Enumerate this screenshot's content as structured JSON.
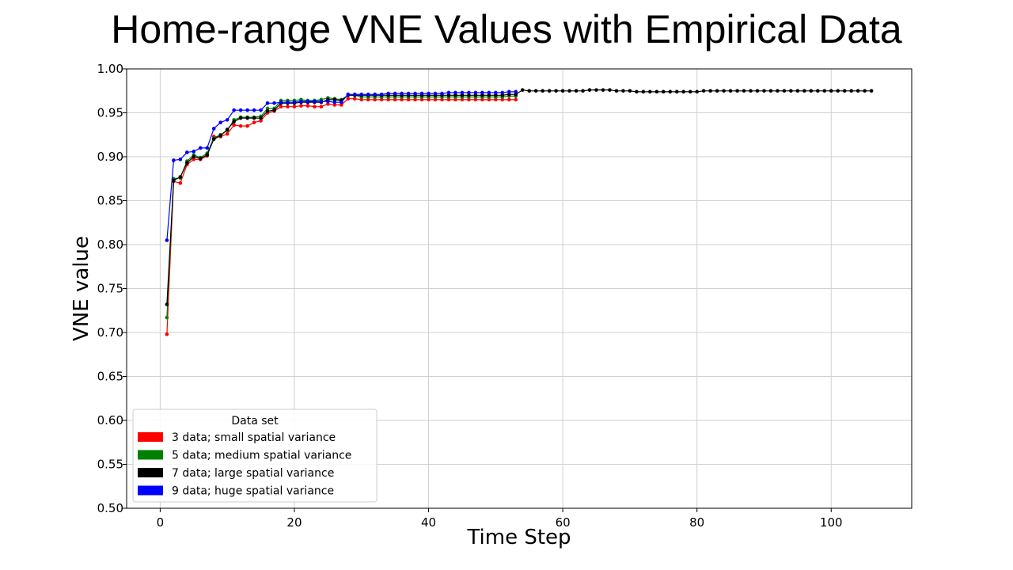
{
  "slide": {
    "title": "Home-range VNE Values with Empirical Data"
  },
  "chart_data": {
    "type": "line",
    "title": "",
    "xlabel": "Time Step",
    "ylabel": "VNE value",
    "xlim": [
      -5,
      112
    ],
    "ylim": [
      0.5,
      1.0
    ],
    "xticks": [
      0,
      20,
      40,
      60,
      80,
      100
    ],
    "yticks": [
      0.5,
      0.55,
      0.6,
      0.65,
      0.7,
      0.75,
      0.8,
      0.85,
      0.9,
      0.95,
      1.0
    ],
    "grid": true,
    "legend": {
      "title": "Data set",
      "placement": "lower-left"
    },
    "series": [
      {
        "name": "3 data; small spatial variance",
        "color": "#ff0000",
        "x": [
          1,
          2,
          3,
          4,
          5,
          6,
          7,
          8,
          9,
          10,
          11,
          12,
          13,
          14,
          15,
          16,
          17,
          18,
          19,
          20,
          21,
          22,
          23,
          24,
          25,
          26,
          27,
          28,
          29,
          30,
          31,
          32,
          33,
          34,
          35,
          36,
          37,
          38,
          39,
          40,
          41,
          42,
          43,
          44,
          45,
          46,
          47,
          48,
          49,
          50,
          51,
          52,
          53
        ],
        "y": [
          0.698,
          0.872,
          0.87,
          0.891,
          0.897,
          0.897,
          0.901,
          0.923,
          0.923,
          0.926,
          0.936,
          0.935,
          0.935,
          0.939,
          0.941,
          0.95,
          0.952,
          0.957,
          0.957,
          0.957,
          0.958,
          0.958,
          0.957,
          0.957,
          0.96,
          0.959,
          0.959,
          0.966,
          0.966,
          0.965,
          0.965,
          0.965,
          0.965,
          0.965,
          0.965,
          0.965,
          0.965,
          0.965,
          0.965,
          0.965,
          0.965,
          0.965,
          0.965,
          0.965,
          0.965,
          0.965,
          0.965,
          0.965,
          0.965,
          0.965,
          0.965,
          0.965,
          0.965
        ]
      },
      {
        "name": "5 data; medium spatial variance",
        "color": "#008000",
        "x": [
          1,
          2,
          3,
          4,
          5,
          6,
          7,
          8,
          9,
          10,
          11,
          12,
          13,
          14,
          15,
          16,
          17,
          18,
          19,
          20,
          21,
          22,
          23,
          24,
          25,
          26,
          27,
          28,
          29,
          30,
          31,
          32,
          33,
          34,
          35,
          36,
          37,
          38,
          39,
          40,
          41,
          42,
          43,
          44,
          45,
          46,
          47,
          48,
          49,
          50,
          51,
          52,
          53
        ],
        "y": [
          0.717,
          0.875,
          0.876,
          0.895,
          0.902,
          0.899,
          0.904,
          0.921,
          0.925,
          0.93,
          0.942,
          0.945,
          0.945,
          0.945,
          0.946,
          0.955,
          0.955,
          0.964,
          0.964,
          0.964,
          0.965,
          0.964,
          0.964,
          0.965,
          0.967,
          0.966,
          0.965,
          0.97,
          0.97,
          0.968,
          0.968,
          0.968,
          0.968,
          0.968,
          0.968,
          0.968,
          0.968,
          0.968,
          0.968,
          0.968,
          0.968,
          0.968,
          0.968,
          0.968,
          0.968,
          0.968,
          0.968,
          0.968,
          0.968,
          0.968,
          0.968,
          0.969,
          0.969
        ]
      },
      {
        "name": "7 data; large spatial variance",
        "color": "#000000",
        "x": [
          1,
          2,
          3,
          4,
          5,
          6,
          7,
          8,
          9,
          10,
          11,
          12,
          13,
          14,
          15,
          16,
          17,
          18,
          19,
          20,
          21,
          22,
          23,
          24,
          25,
          26,
          27,
          28,
          29,
          30,
          31,
          32,
          33,
          34,
          35,
          36,
          37,
          38,
          39,
          40,
          41,
          42,
          43,
          44,
          45,
          46,
          47,
          48,
          49,
          50,
          51,
          52,
          53,
          54,
          55,
          56,
          57,
          58,
          59,
          60,
          61,
          62,
          63,
          64,
          65,
          66,
          67,
          68,
          69,
          70,
          71,
          72,
          73,
          74,
          75,
          76,
          77,
          78,
          79,
          80,
          81,
          82,
          83,
          84,
          85,
          86,
          87,
          88,
          89,
          90,
          91,
          92,
          93,
          94,
          95,
          96,
          97,
          98,
          99,
          100,
          101,
          102,
          103,
          104,
          105,
          106
        ],
        "y": [
          0.732,
          0.873,
          0.877,
          0.893,
          0.9,
          0.898,
          0.902,
          0.92,
          0.924,
          0.931,
          0.94,
          0.944,
          0.944,
          0.944,
          0.944,
          0.952,
          0.953,
          0.961,
          0.961,
          0.961,
          0.962,
          0.962,
          0.962,
          0.962,
          0.965,
          0.965,
          0.964,
          0.97,
          0.97,
          0.97,
          0.97,
          0.97,
          0.97,
          0.97,
          0.97,
          0.97,
          0.97,
          0.97,
          0.97,
          0.97,
          0.97,
          0.97,
          0.97,
          0.97,
          0.97,
          0.97,
          0.97,
          0.97,
          0.97,
          0.97,
          0.97,
          0.971,
          0.971,
          0.976,
          0.975,
          0.975,
          0.975,
          0.975,
          0.975,
          0.975,
          0.975,
          0.975,
          0.975,
          0.976,
          0.976,
          0.976,
          0.976,
          0.975,
          0.975,
          0.975,
          0.974,
          0.974,
          0.974,
          0.974,
          0.974,
          0.974,
          0.974,
          0.974,
          0.974,
          0.974,
          0.975,
          0.975,
          0.975,
          0.975,
          0.975,
          0.975,
          0.975,
          0.975,
          0.975,
          0.975,
          0.975,
          0.975,
          0.975,
          0.975,
          0.975,
          0.975,
          0.975,
          0.975,
          0.975,
          0.975,
          0.975,
          0.975,
          0.975,
          0.975,
          0.975,
          0.975
        ]
      },
      {
        "name": "9 data; huge spatial variance",
        "color": "#0000ff",
        "x": [
          1,
          2,
          3,
          4,
          5,
          6,
          7,
          8,
          9,
          10,
          11,
          12,
          13,
          14,
          15,
          16,
          17,
          18,
          19,
          20,
          21,
          22,
          23,
          24,
          25,
          26,
          27,
          28,
          29,
          30,
          31,
          32,
          33,
          34,
          35,
          36,
          37,
          38,
          39,
          40,
          41,
          42,
          43,
          44,
          45,
          46,
          47,
          48,
          49,
          50,
          51,
          52,
          53
        ],
        "y": [
          0.805,
          0.896,
          0.897,
          0.905,
          0.906,
          0.91,
          0.91,
          0.932,
          0.939,
          0.942,
          0.953,
          0.953,
          0.953,
          0.953,
          0.953,
          0.961,
          0.961,
          0.962,
          0.962,
          0.962,
          0.963,
          0.963,
          0.963,
          0.963,
          0.963,
          0.962,
          0.962,
          0.971,
          0.971,
          0.971,
          0.971,
          0.971,
          0.971,
          0.972,
          0.972,
          0.972,
          0.972,
          0.972,
          0.972,
          0.972,
          0.972,
          0.972,
          0.973,
          0.973,
          0.973,
          0.973,
          0.973,
          0.973,
          0.973,
          0.973,
          0.973,
          0.974,
          0.974
        ]
      }
    ]
  }
}
